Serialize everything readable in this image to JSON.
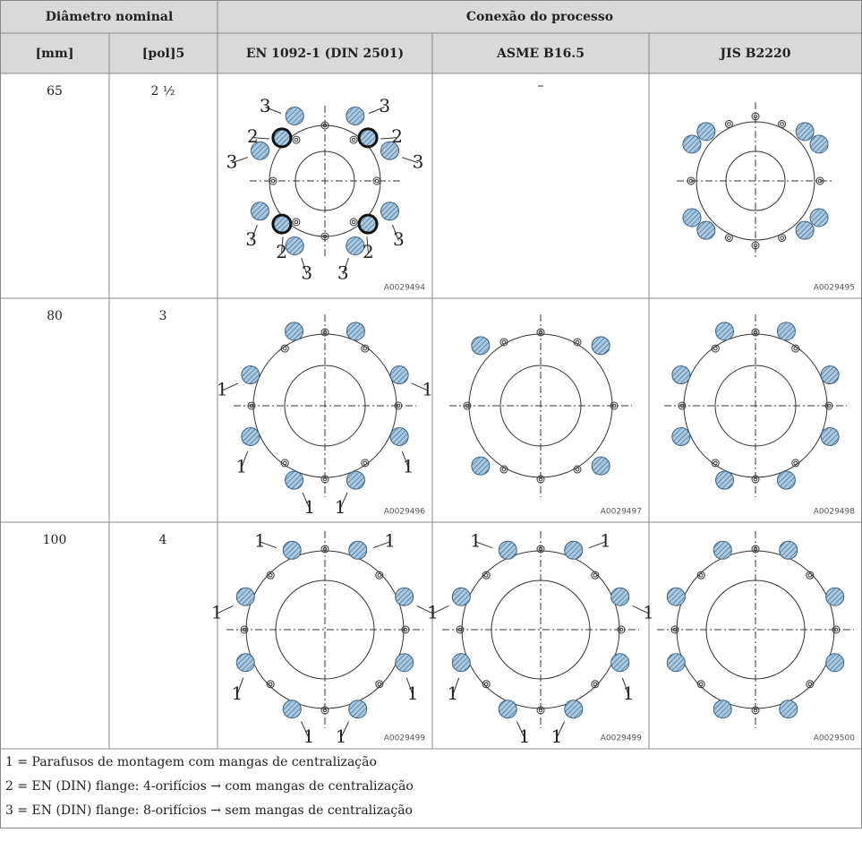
{
  "header": {
    "group1": "Diâmetro nominal",
    "group2": "Conexão do processo",
    "columns": [
      "[mm]",
      "[pol]5",
      "EN 1092-1 (DIN 2501)",
      "ASME B16.5",
      "JIS B2220"
    ]
  },
  "rows": [
    {
      "mm": "65",
      "inch": "2 ½",
      "cells": [
        {
          "callouts": [
            "3",
            "3",
            "2",
            "2",
            "3",
            "3",
            "3",
            "3",
            "2",
            "2",
            "3",
            "3"
          ],
          "code": "A0029494"
        },
        {
          "text": "–"
        },
        {
          "callouts": [],
          "code": "A0029495"
        }
      ]
    },
    {
      "mm": "80",
      "inch": "3",
      "cells": [
        {
          "callouts": [
            "1",
            "1",
            "1",
            "1",
            "1",
            "1"
          ],
          "code": "A0029496"
        },
        {
          "callouts": [],
          "code": "A0029497"
        },
        {
          "callouts": [],
          "code": "A0029498"
        }
      ]
    },
    {
      "mm": "100",
      "inch": "4",
      "cells": [
        {
          "callouts": [
            "1",
            "1",
            "1",
            "1",
            "1",
            "1",
            "1",
            "1"
          ],
          "code": "A0029499"
        },
        {
          "callouts": [
            "1",
            "1",
            "1",
            "1",
            "1",
            "1",
            "1",
            "1"
          ],
          "code": "A0029499"
        },
        {
          "callouts": [],
          "code": "A0029500"
        }
      ]
    }
  ],
  "notes": [
    "1 = Parafusos de montagem com mangas de centralização",
    "2 = EN (DIN) flange: 4-orifícios → com mangas de centralização",
    "3 = EN (DIN) flange: 8-orifícios → sem mangas de centralização"
  ]
}
